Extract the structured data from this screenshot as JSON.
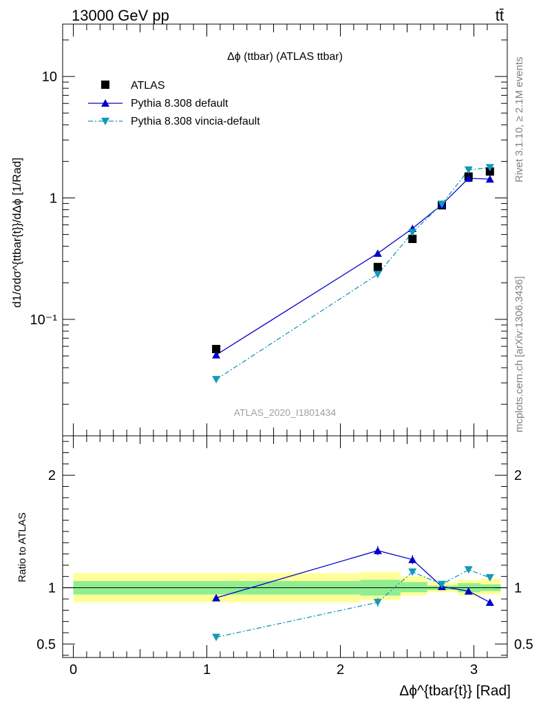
{
  "header": {
    "energy_label": "13000 GeV pp",
    "process_label": "tt̄"
  },
  "side_labels": {
    "rivet": "Rivet 3.1.10, ≥ 2.1M events",
    "mcplots": "mcplots.cern.ch [arXiv:1306.3436]"
  },
  "chart_data": [
    {
      "type": "line",
      "title": "Δϕ (ttbar) (ATLAS ttbar)",
      "watermark": "ATLAS_2020_I1801434",
      "ylabel": "d1/σdσ^{ttbar{t}}/dΔϕ [1/Rad]",
      "yscale": "log",
      "xlim": [
        -0.08,
        3.25
      ],
      "ylim": [
        0.011,
        27
      ],
      "ytick_labels": [
        "10⁻¹",
        "1",
        "10"
      ],
      "legend_position": "top-left",
      "x": [
        1.07,
        2.28,
        2.54,
        2.76,
        2.96,
        3.12
      ],
      "series": [
        {
          "name": "ATLAS",
          "marker": "square",
          "color": "#000000",
          "values": [
            0.057,
            0.27,
            0.46,
            0.87,
            1.5,
            1.65
          ]
        },
        {
          "name": "Pythia 8.308 default",
          "marker": "triangle-up",
          "color": "#0000cc",
          "line": "solid",
          "values": [
            0.051,
            0.35,
            0.56,
            0.88,
            1.45,
            1.43
          ]
        },
        {
          "name": "Pythia 8.308 vincia-default",
          "marker": "triangle-down",
          "color": "#1199bb",
          "line": "dashdot",
          "values": [
            0.032,
            0.235,
            0.52,
            0.89,
            1.7,
            1.78
          ]
        }
      ]
    },
    {
      "type": "line",
      "ylabel": "Ratio to ATLAS",
      "xlabel": "Δϕ^{tbar{t}} [Rad]",
      "xlim": [
        -0.08,
        3.25
      ],
      "ylim": [
        0.38,
        2.35
      ],
      "xticks": [
        0,
        1,
        2,
        3
      ],
      "xtick_labels": [
        "0",
        "1",
        "2",
        "3"
      ],
      "yticks": [
        0.5,
        1,
        2
      ],
      "ytick_labels": [
        "0.5",
        "1",
        "2"
      ],
      "x": [
        1.07,
        2.28,
        2.54,
        2.76,
        2.96,
        3.12
      ],
      "series": [
        {
          "name": "Pythia 8.308 default",
          "values": [
            0.91,
            1.33,
            1.25,
            1.01,
            0.97,
            0.87
          ],
          "errors": [
            0.03,
            0.04,
            0.04,
            0.02,
            0.02,
            0.02
          ]
        },
        {
          "name": "Pythia 8.308 vincia-default",
          "values": [
            0.56,
            0.87,
            1.14,
            1.03,
            1.16,
            1.09
          ],
          "errors": [
            0.03,
            0.04,
            0.03,
            0.02,
            0.02,
            0.02
          ]
        }
      ],
      "bands": [
        {
          "x0": 0.0,
          "x1": 2.15,
          "inner": [
            0.94,
            1.06
          ],
          "outer": [
            0.87,
            1.13
          ]
        },
        {
          "x0": 2.15,
          "x1": 2.45,
          "inner": [
            0.93,
            1.07
          ],
          "outer": [
            0.89,
            1.14
          ]
        },
        {
          "x0": 2.45,
          "x1": 2.65,
          "inner": [
            0.96,
            1.05
          ],
          "outer": [
            0.93,
            1.1
          ]
        },
        {
          "x0": 2.65,
          "x1": 2.88,
          "inner": [
            0.98,
            1.02
          ],
          "outer": [
            0.96,
            1.05
          ]
        },
        {
          "x0": 2.88,
          "x1": 3.05,
          "inner": [
            0.96,
            1.04
          ],
          "outer": [
            0.93,
            1.07
          ]
        },
        {
          "x0": 3.05,
          "x1": 3.2,
          "inner": [
            0.97,
            1.03
          ],
          "outer": [
            0.94,
            1.08
          ]
        }
      ],
      "band_colors": {
        "inner": "#90ee90",
        "outer": "#ffff99"
      }
    }
  ]
}
